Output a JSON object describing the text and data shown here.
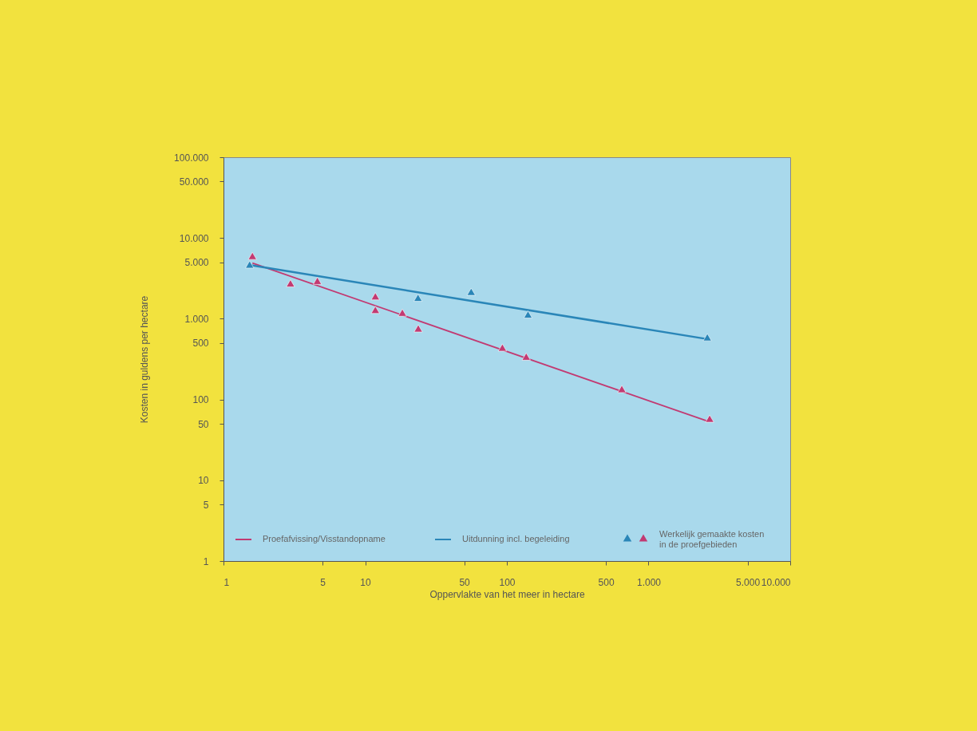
{
  "chart_data": {
    "type": "scatter",
    "xlabel": "Oppervlakte van het meer in hectare",
    "ylabel": "Kosten in guldens per hectare",
    "log": "xy",
    "grid": false,
    "legend": "bottom",
    "xlim": [
      1,
      10000
    ],
    "ylim": [
      1,
      100000
    ],
    "xticks": [
      1,
      5,
      10,
      50,
      100,
      500,
      {
        "value": 1000,
        "label": "1.000"
      },
      {
        "value": 5000,
        "label": "5.000"
      },
      {
        "value": 10000,
        "label": "10.000"
      }
    ],
    "yticks": [
      1,
      5,
      10,
      50,
      100,
      500,
      {
        "value": 1000,
        "label": "1.000"
      },
      {
        "value": 5000,
        "label": "5.000"
      },
      {
        "value": 10000,
        "label": "10.000"
      },
      {
        "value": 50000,
        "label": "50.000"
      },
      {
        "value": 100000,
        "label": "100.000"
      }
    ],
    "series": [
      {
        "name": "Proefafvissing/Visstandopname",
        "type": "line",
        "marker": "none",
        "color": "#c23a72",
        "x": [
          1.6,
          2600
        ],
        "values": [
          4900,
          54
        ]
      },
      {
        "name": "Uitdunning incl. begeleiding",
        "type": "line",
        "marker": "none",
        "color": "#2a86b8",
        "x": [
          1.55,
          2600
        ],
        "values": [
          4600,
          560
        ]
      },
      {
        "name": null,
        "marker": "triangle",
        "color": "#2a86b8",
        "x": [
          1.53,
          23.6,
          56,
          141,
          2600
        ],
        "values": [
          4700,
          1820,
          2160,
          1130,
          590
        ]
      },
      {
        "name": "Werkelijk gemaakte kosten in de proefgebieden",
        "marker": "triangle",
        "color": "#c23a72",
        "x": [
          1.6,
          2.97,
          4.6,
          11.8,
          11.8,
          18.3,
          23.7,
          93,
          137,
          648,
          2700
        ],
        "values": [
          6000,
          2750,
          2950,
          1900,
          1290,
          1190,
          760,
          440,
          340,
          135,
          58
        ]
      }
    ]
  }
}
